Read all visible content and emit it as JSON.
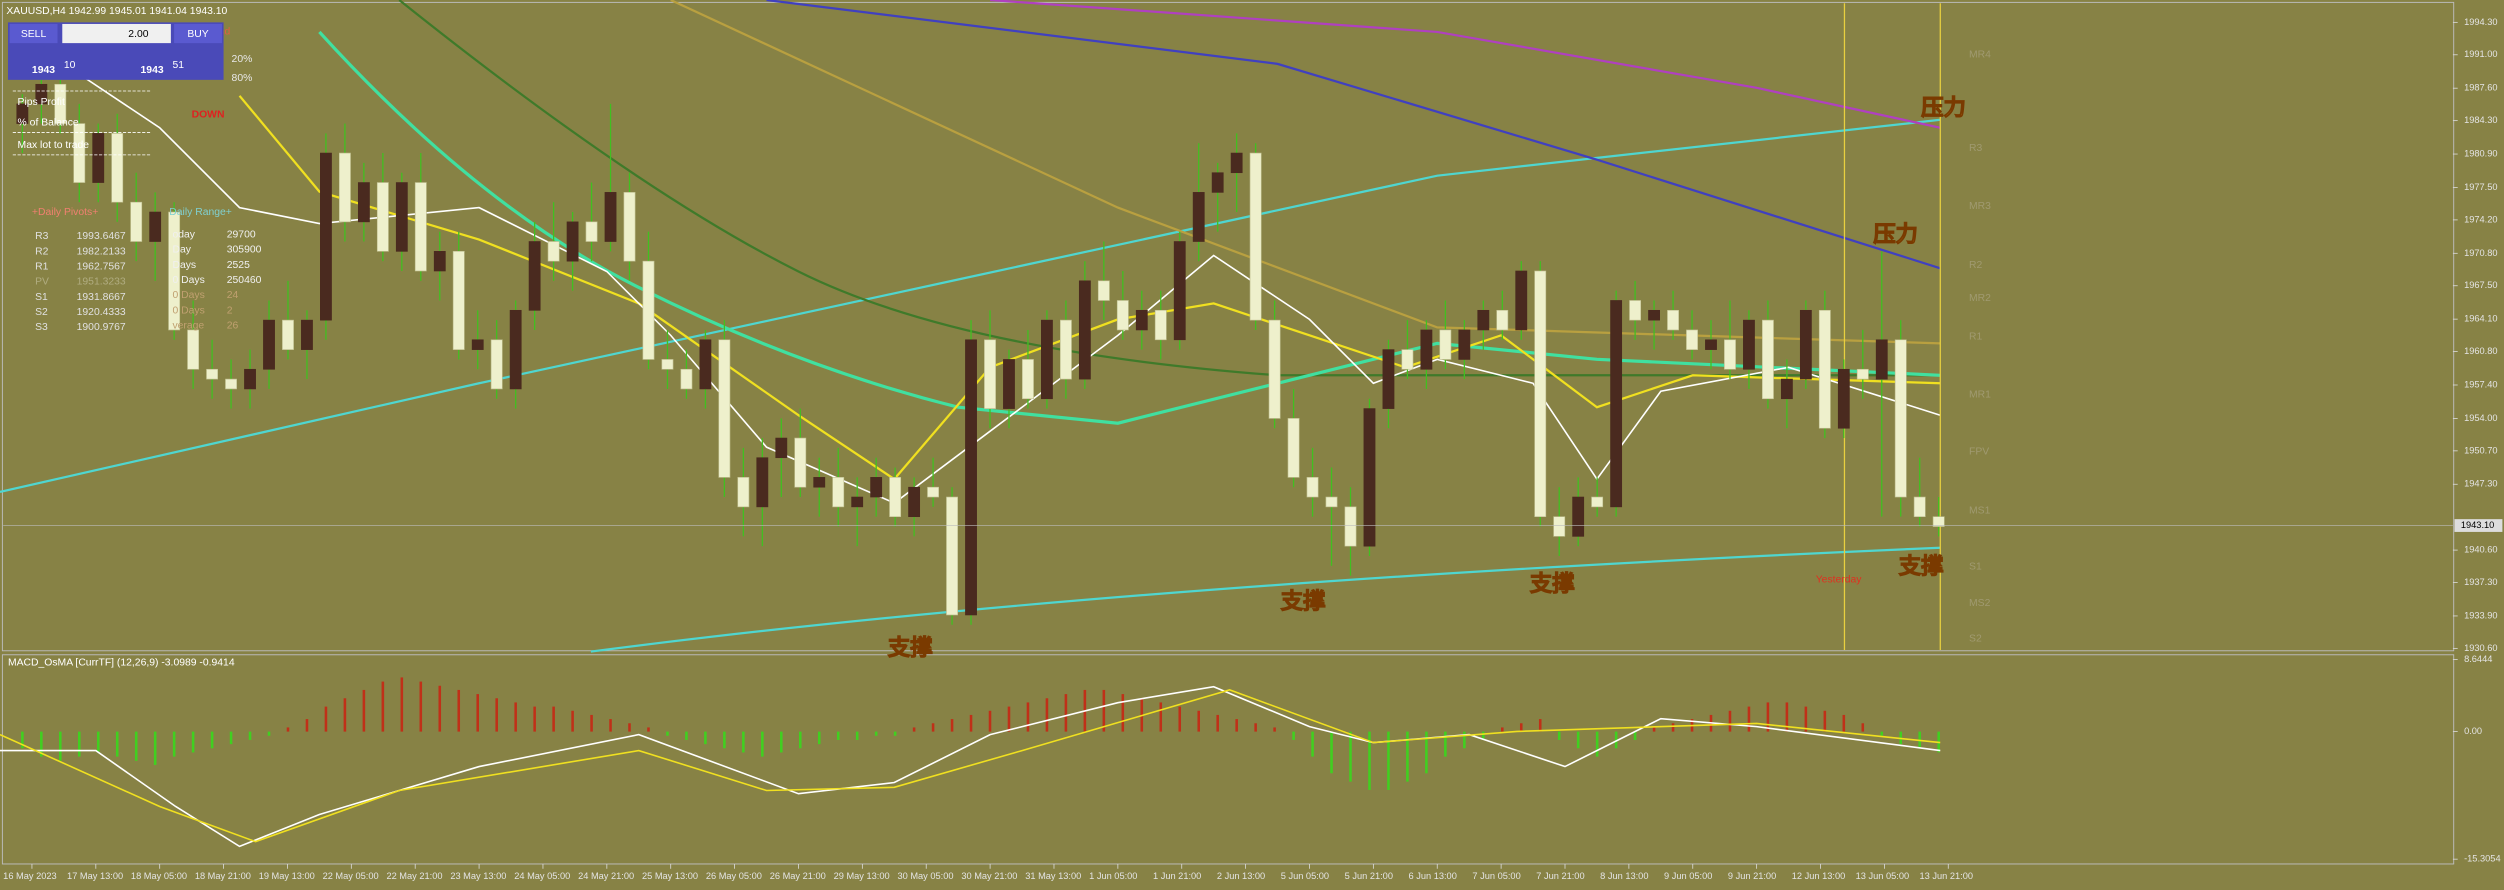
{
  "header": {
    "symbol_info": "XAUUSD,H4  1942.99 1945.01 1941.04 1943.10"
  },
  "trade_panel": {
    "sell": "SELL",
    "lot": "2.00",
    "buy": "BUY",
    "sell_price": "1943",
    "sell_pips": "10",
    "buy_price": "1943",
    "buy_pips": "51",
    "labels": [
      "nd",
      "20%",
      "80%"
    ],
    "rows": [
      "Pips Profit",
      "% of Balance",
      "Max lot to trade"
    ],
    "signal": "DOWN"
  },
  "daily_pivots": {
    "title": "+Daily Pivots+",
    "rows": [
      [
        "R3",
        "1993.6467"
      ],
      [
        "R2",
        "1982.2133"
      ],
      [
        "R1",
        "1962.7567"
      ],
      [
        "PV",
        "1951.3233"
      ],
      [
        "S1",
        "1931.8667"
      ],
      [
        "S2",
        "1920.4333"
      ],
      [
        "S3",
        "1900.9767"
      ]
    ]
  },
  "daily_range": {
    "title": "Daily Range+",
    "rows": [
      [
        "oday",
        "29700"
      ],
      [
        "Day",
        "305900"
      ],
      [
        "Days",
        "2525"
      ],
      [
        "0 Days",
        "250460"
      ],
      [
        "0 Days",
        "24"
      ],
      [
        "0 Days",
        "2"
      ],
      [
        "verage",
        "26"
      ]
    ]
  },
  "price_axis": {
    "range": [
      1930.6,
      1994.3
    ],
    "ticks": [
      {
        "value": 1994.3,
        "label": "1994.30"
      },
      {
        "value": 1991,
        "label": "1991.00"
      },
      {
        "value": 1987.6,
        "label": "1987.60"
      },
      {
        "value": 1984.3,
        "label": "1984.30"
      },
      {
        "value": 1980.9,
        "label": "1980.90"
      },
      {
        "value": 1977.5,
        "label": "1977.50"
      },
      {
        "value": 1974.2,
        "label": "1974.20"
      },
      {
        "value": 1970.8,
        "label": "1970.80"
      },
      {
        "value": 1967.5,
        "label": "1967.50"
      },
      {
        "value": 1964.1,
        "label": "1964.10"
      },
      {
        "value": 1960.8,
        "label": "1960.80"
      },
      {
        "value": 1957.4,
        "label": "1957.40"
      },
      {
        "value": 1954,
        "label": "1954.00"
      },
      {
        "value": 1950.7,
        "label": "1950.70"
      },
      {
        "value": 1947.3,
        "label": "1947.30"
      },
      {
        "value": 1940.6,
        "label": "1940.60"
      },
      {
        "value": 1937.3,
        "label": "1937.30"
      },
      {
        "value": 1933.9,
        "label": "1933.90"
      },
      {
        "value": 1930.6,
        "label": "1930.60"
      }
    ],
    "current": {
      "value": 1943.1,
      "label": "1943.10"
    }
  },
  "pivot_levels": [
    {
      "label": "MR4",
      "price": 1991
    },
    {
      "label": "R3",
      "price": 1981.5
    },
    {
      "label": "MR3",
      "price": 1975.6
    },
    {
      "label": "R2",
      "price": 1969.6
    },
    {
      "label": "MR2",
      "price": 1966.2
    },
    {
      "label": "R1",
      "price": 1962.3
    },
    {
      "label": "MR1",
      "price": 1956.4
    },
    {
      "label": "FPV",
      "price": 1950.6
    },
    {
      "label": "MS1",
      "price": 1944.6
    },
    {
      "label": "S1",
      "price": 1938.9
    },
    {
      "label": "MS2",
      "price": 1935.2
    },
    {
      "label": "S2",
      "price": 1931.6
    }
  ],
  "annotations": {
    "resistance": "压力",
    "support": "支撑",
    "yesterday": "Yesterday"
  },
  "candles": [
    [
      1984,
      1987,
      1981,
      1986
    ],
    [
      1986,
      1990,
      1984,
      1988
    ],
    [
      1988,
      1990,
      1983,
      1984
    ],
    [
      1984,
      1986,
      1976,
      1978
    ],
    [
      1978,
      1984,
      1976,
      1983
    ],
    [
      1983,
      1985,
      1974,
      1976
    ],
    [
      1976,
      1979,
      1970,
      1972
    ],
    [
      1972,
      1977,
      1968,
      1975
    ],
    [
      1975,
      1976,
      1962,
      1963
    ],
    [
      1963,
      1966,
      1957,
      1959
    ],
    [
      1959,
      1962,
      1956,
      1958
    ],
    [
      1958,
      1960,
      1955,
      1957
    ],
    [
      1957,
      1961,
      1955,
      1959
    ],
    [
      1959,
      1966,
      1957,
      1964
    ],
    [
      1964,
      1968,
      1960,
      1961
    ],
    [
      1961,
      1965,
      1958,
      1964
    ],
    [
      1964,
      1983,
      1962,
      1981
    ],
    [
      1981,
      1984,
      1972,
      1974
    ],
    [
      1974,
      1980,
      1972,
      1978
    ],
    [
      1978,
      1981,
      1970,
      1971
    ],
    [
      1971,
      1979,
      1969,
      1978
    ],
    [
      1978,
      1981,
      1968,
      1969
    ],
    [
      1969,
      1973,
      1966,
      1971
    ],
    [
      1971,
      1973,
      1960,
      1961
    ],
    [
      1961,
      1965,
      1959,
      1962
    ],
    [
      1962,
      1964,
      1956,
      1957
    ],
    [
      1957,
      1966,
      1955,
      1965
    ],
    [
      1965,
      1974,
      1963,
      1972
    ],
    [
      1972,
      1976,
      1968,
      1970
    ],
    [
      1970,
      1975,
      1967,
      1974
    ],
    [
      1974,
      1978,
      1970,
      1972
    ],
    [
      1972,
      1986,
      1971,
      1977
    ],
    [
      1977,
      1979,
      1968,
      1970
    ],
    [
      1970,
      1973,
      1959,
      1960
    ],
    [
      1960,
      1963,
      1957,
      1959
    ],
    [
      1959,
      1961,
      1956,
      1957
    ],
    [
      1957,
      1963,
      1955,
      1962
    ],
    [
      1962,
      1964,
      1946,
      1948
    ],
    [
      1948,
      1951,
      1942,
      1945
    ],
    [
      1945,
      1952,
      1941,
      1950
    ],
    [
      1950,
      1954,
      1946,
      1952
    ],
    [
      1952,
      1955,
      1946,
      1947
    ],
    [
      1947,
      1950,
      1944,
      1948
    ],
    [
      1948,
      1951,
      1943,
      1945
    ],
    [
      1945,
      1948,
      1941,
      1946
    ],
    [
      1946,
      1950,
      1944,
      1948
    ],
    [
      1948,
      1949,
      1943,
      1944
    ],
    [
      1944,
      1948,
      1942,
      1947
    ],
    [
      1947,
      1950,
      1945,
      1946
    ],
    [
      1946,
      1947,
      1933,
      1934
    ],
    [
      1934,
      1964,
      1933,
      1962
    ],
    [
      1962,
      1965,
      1953,
      1955
    ],
    [
      1955,
      1961,
      1953,
      1960
    ],
    [
      1960,
      1963,
      1955,
      1956
    ],
    [
      1956,
      1965,
      1955,
      1964
    ],
    [
      1964,
      1966,
      1956,
      1958
    ],
    [
      1958,
      1970,
      1957,
      1968
    ],
    [
      1968,
      1972,
      1964,
      1966
    ],
    [
      1966,
      1969,
      1962,
      1963
    ],
    [
      1963,
      1967,
      1961,
      1965
    ],
    [
      1965,
      1967,
      1960,
      1962
    ],
    [
      1962,
      1973,
      1961,
      1972
    ],
    [
      1972,
      1982,
      1970,
      1977
    ],
    [
      1977,
      1980,
      1973,
      1979
    ],
    [
      1979,
      1983,
      1975,
      1981
    ],
    [
      1981,
      1982,
      1963,
      1964
    ],
    [
      1964,
      1966,
      1953,
      1954
    ],
    [
      1954,
      1957,
      1947,
      1948
    ],
    [
      1948,
      1951,
      1944,
      1946
    ],
    [
      1946,
      1949,
      1939,
      1945
    ],
    [
      1945,
      1947,
      1938,
      1941
    ],
    [
      1941,
      1956,
      1940,
      1955
    ],
    [
      1955,
      1962,
      1953,
      1961
    ],
    [
      1961,
      1964,
      1958,
      1959
    ],
    [
      1959,
      1964,
      1957,
      1963
    ],
    [
      1963,
      1966,
      1959,
      1960
    ],
    [
      1960,
      1964,
      1958,
      1963
    ],
    [
      1963,
      1966,
      1961,
      1965
    ],
    [
      1965,
      1967,
      1962,
      1963
    ],
    [
      1963,
      1970,
      1962,
      1969
    ],
    [
      1969,
      1970,
      1943,
      1944
    ],
    [
      1944,
      1947,
      1940,
      1942
    ],
    [
      1942,
      1948,
      1941,
      1946
    ],
    [
      1946,
      1948,
      1944,
      1945
    ],
    [
      1945,
      1967,
      1944,
      1966
    ],
    [
      1966,
      1968,
      1962,
      1964
    ],
    [
      1964,
      1966,
      1961,
      1965
    ],
    [
      1965,
      1967,
      1962,
      1963
    ],
    [
      1963,
      1965,
      1960,
      1961
    ],
    [
      1961,
      1964,
      1959,
      1962
    ],
    [
      1962,
      1966,
      1958,
      1959
    ],
    [
      1959,
      1965,
      1957,
      1964
    ],
    [
      1964,
      1966,
      1955,
      1956
    ],
    [
      1956,
      1960,
      1953,
      1958
    ],
    [
      1958,
      1966,
      1957,
      1965
    ],
    [
      1965,
      1967,
      1952,
      1953
    ],
    [
      1953,
      1960,
      1952,
      1959
    ],
    [
      1959,
      1963,
      1956,
      1958
    ],
    [
      1958,
      1971,
      1944,
      1962
    ],
    [
      1962,
      1964,
      1944,
      1946
    ],
    [
      1946,
      1950,
      1943,
      1944
    ],
    [
      1944,
      1946,
      1942,
      1943
    ]
  ],
  "macd": {
    "label": "MACD_OsMA [CurrTF] (12,26,9) -3.0989 -0.9414",
    "range": [
      -15.3054,
      8.6444
    ],
    "ticks": [
      {
        "value": 8.6444,
        "label": "8.6444"
      },
      {
        "value": 0,
        "label": "0.00"
      },
      {
        "value": -15.3054,
        "label": "-15.3054"
      }
    ],
    "histogram": [
      -2,
      -3,
      -3.5,
      -3,
      -2.5,
      -3,
      -3.5,
      -4,
      -3,
      -2.5,
      -2,
      -1.5,
      -1,
      -0.5,
      0.5,
      1.5,
      3,
      4,
      5,
      6,
      6.5,
      6,
      5.5,
      5,
      4.5,
      4,
      3.5,
      3,
      3,
      2.5,
      2,
      1.5,
      1,
      0.5,
      -0.5,
      -1,
      -1.5,
      -2,
      -2.5,
      -3,
      -2.5,
      -2,
      -1.5,
      -1,
      -1,
      -0.5,
      -0.5,
      0.5,
      1,
      1.5,
      2,
      2.5,
      3,
      3.5,
      4,
      4.5,
      5,
      5,
      4.5,
      4,
      3.5,
      3,
      2.5,
      2,
      1.5,
      1,
      0.5,
      -1,
      -3,
      -5,
      -6,
      -7,
      -7,
      -6,
      -5,
      -3,
      -2,
      -1,
      0.5,
      1,
      1.5,
      -1,
      -2,
      -3,
      -2,
      -1,
      0.5,
      1,
      1.5,
      2,
      2.5,
      3,
      3.5,
      3.5,
      3,
      2.5,
      2,
      1,
      -0.5,
      -1.5,
      -2,
      -2.5
    ]
  },
  "dates": [
    "16 May 2023",
    "17 May 13:00",
    "18 May 05:00",
    "18 May 21:00",
    "19 May 13:00",
    "22 May 05:00",
    "22 May 21:00",
    "23 May 13:00",
    "24 May 05:00",
    "24 May 21:00",
    "25 May 13:00",
    "26 May 05:00",
    "26 May 21:00",
    "29 May 13:00",
    "30 May 05:00",
    "30 May 21:00",
    "31 May 13:00",
    "1 Jun 05:00",
    "1 Jun 21:00",
    "2 Jun 13:00",
    "5 Jun 05:00",
    "5 Jun 21:00",
    "6 Jun 13:00",
    "7 Jun 05:00",
    "7 Jun 21:00",
    "8 Jun 13:00",
    "9 Jun 05:00",
    "9 Jun 21:00",
    "12 Jun 13:00",
    "13 Jun 05:00",
    "13 Jun 21:00"
  ]
}
